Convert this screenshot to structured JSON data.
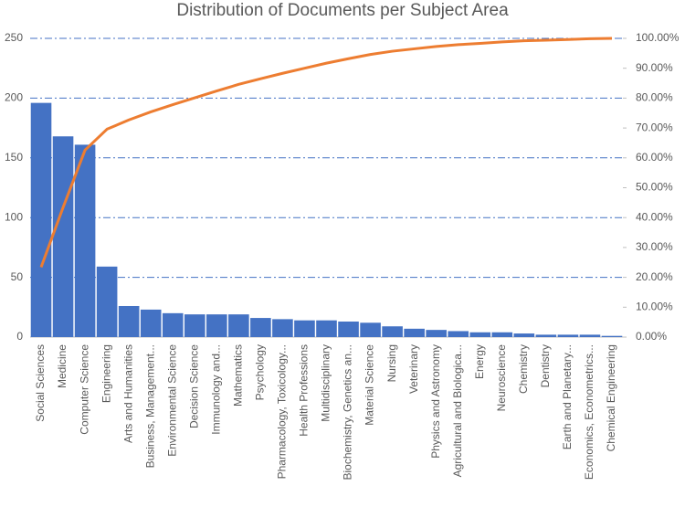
{
  "chart_data": {
    "type": "pareto",
    "title": "Distribution of Documents per Subject Area",
    "categories": [
      "Social Sciences",
      "Medicine",
      "Computer Science",
      "Engineering",
      "Arts and Humanities",
      "Business, Management...",
      "Environmental Science",
      "Decision Science",
      "Immunology and...",
      "Mathematics",
      "Psychology",
      "Pharmacology, Toxicology...",
      "Health Professions",
      "Multidisciplinary",
      "Biochemistry, Genetics an...",
      "Material Science",
      "Nursing",
      "Veterinary",
      "Physics and Astronomy",
      "Agricultural and Biologica...",
      "Energy",
      "Neuroscience",
      "Chemistry",
      "Dentistry",
      "Earth and Planetary...",
      "Economics, Econometrics...",
      "Chemical Engineering"
    ],
    "series": [
      {
        "type": "bar",
        "color": "#4472c4",
        "values": [
          196,
          168,
          161,
          59,
          26,
          23,
          20,
          19,
          19,
          19,
          16,
          15,
          14,
          14,
          13,
          12,
          9,
          7,
          6,
          5,
          4,
          4,
          3,
          2,
          2,
          2,
          1
        ]
      },
      {
        "type": "line",
        "axis": "y2",
        "color": "#ed7d31",
        "values": [
          23.4,
          43.4,
          62.6,
          69.6,
          72.7,
          75.4,
          77.8,
          80.1,
          82.4,
          84.6,
          86.5,
          88.3,
          90.0,
          91.7,
          93.2,
          94.6,
          95.7,
          96.5,
          97.3,
          97.9,
          98.3,
          98.8,
          99.2,
          99.4,
          99.6,
          99.9,
          100
        ]
      }
    ],
    "ylim": [
      0,
      250
    ],
    "yticks": [
      0,
      50,
      100,
      150,
      200,
      250
    ],
    "y2lim": [
      0,
      100
    ],
    "y2ticks": [
      {
        "value": 0,
        "label": "0.00%"
      },
      {
        "value": 10,
        "label": "10.00%"
      },
      {
        "value": 20,
        "label": "20.00%"
      },
      {
        "value": 30,
        "label": "30.00%"
      },
      {
        "value": 40,
        "label": "40.00%"
      },
      {
        "value": 50,
        "label": "50.00%"
      },
      {
        "value": 60,
        "label": "60.00%"
      },
      {
        "value": 70,
        "label": "70.00%"
      },
      {
        "value": 80,
        "label": "80.00%"
      },
      {
        "value": 90,
        "label": "90.00%"
      },
      {
        "value": 100,
        "label": "100.00%"
      }
    ],
    "grid": true
  }
}
